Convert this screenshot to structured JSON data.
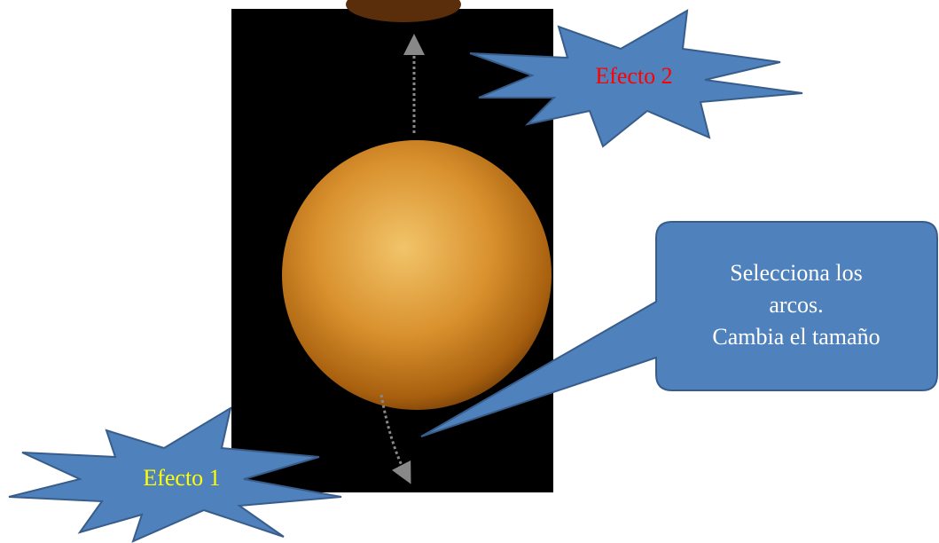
{
  "shapes": [
    {
      "label": "Efecto 2"
    },
    {
      "label": "Efecto 1"
    }
  ],
  "callout": {
    "lines": [
      "Selecciona los",
      "arcos.",
      "Cambia el tamaño"
    ]
  }
}
